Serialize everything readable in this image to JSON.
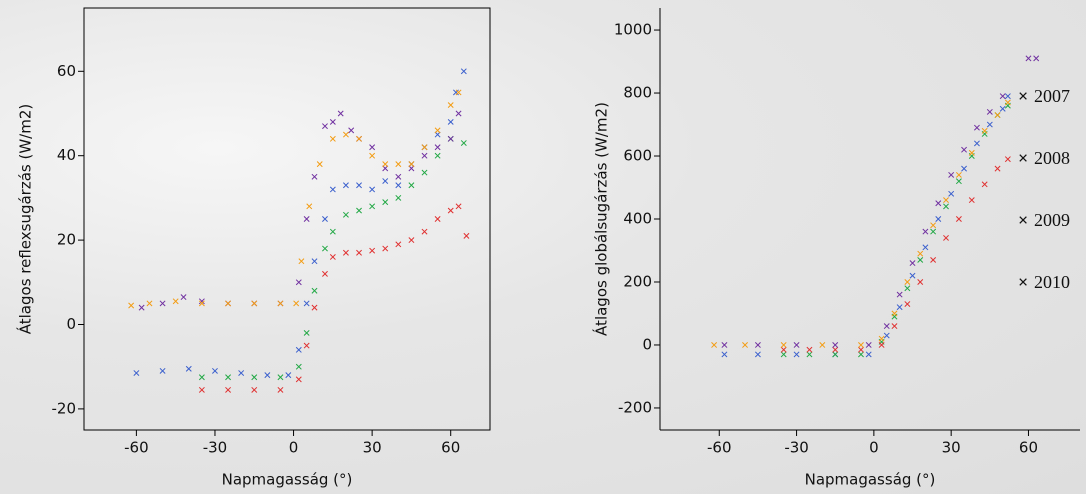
{
  "chart_data": [
    {
      "type": "scatter",
      "x_label": "Napmagasság (°)",
      "y_label": "Átlagos reflexsugárzás (W/m2)",
      "xlim": [
        -80,
        75
      ],
      "ylim": [
        -25,
        75
      ],
      "xticks": [
        -60,
        -30,
        0,
        30,
        60
      ],
      "yticks": [
        -20,
        0,
        20,
        40,
        60
      ],
      "box": true,
      "series": [
        {
          "color": "#3a5fcd",
          "x": [
            -60,
            -50,
            -40,
            -30,
            -20,
            -10,
            -2,
            2,
            5,
            8,
            12,
            15,
            20,
            25,
            30,
            35,
            40,
            45,
            50,
            55,
            60,
            62,
            65
          ],
          "values": [
            -11.5,
            -11,
            -10.5,
            -11,
            -11.5,
            -12,
            -12,
            -6,
            5,
            15,
            25,
            32,
            33,
            33,
            32,
            34,
            33,
            38,
            42,
            45,
            48,
            55,
            60
          ]
        },
        {
          "color": "#22a845",
          "x": [
            -35,
            -25,
            -15,
            -5,
            2,
            5,
            8,
            12,
            15,
            20,
            25,
            30,
            35,
            40,
            45,
            50,
            55,
            60,
            65
          ],
          "values": [
            -12.5,
            -12.5,
            -12.5,
            -12.5,
            -10,
            -2,
            8,
            18,
            22,
            26,
            27,
            28,
            29,
            30,
            33,
            36,
            40,
            44,
            43
          ]
        },
        {
          "color": "#e03030",
          "x": [
            -35,
            -25,
            -15,
            -5,
            2,
            5,
            8,
            12,
            15,
            20,
            25,
            30,
            35,
            40,
            45,
            50,
            55,
            60,
            63,
            66
          ],
          "values": [
            -15.5,
            -15.5,
            -15.5,
            -15.5,
            -13,
            -5,
            4,
            12,
            16,
            17,
            17,
            17.5,
            18,
            19,
            20,
            22,
            25,
            27,
            28,
            21
          ]
        },
        {
          "color": "#7030a0",
          "x": [
            -58,
            -50,
            -42,
            -35,
            -25,
            -15,
            -5,
            2,
            5,
            8,
            12,
            15,
            18,
            22,
            25,
            30,
            35,
            40,
            45,
            50,
            55,
            60,
            63
          ],
          "values": [
            4,
            5,
            6.5,
            5.5,
            5,
            5,
            5,
            10,
            25,
            35,
            47,
            48,
            50,
            46,
            44,
            42,
            37,
            35,
            37,
            40,
            42,
            44,
            50
          ]
        },
        {
          "color": "#f39c12",
          "x": [
            -62,
            -55,
            -45,
            -35,
            -25,
            -15,
            -5,
            1,
            3,
            6,
            10,
            15,
            20,
            25,
            30,
            35,
            40,
            45,
            50,
            55,
            60,
            63
          ],
          "values": [
            4.5,
            5,
            5.5,
            5,
            5,
            5,
            5,
            5,
            15,
            28,
            38,
            44,
            45,
            44,
            40,
            38,
            38,
            38,
            42,
            46,
            52,
            55
          ]
        }
      ]
    },
    {
      "type": "scatter",
      "x_label": "Napmagasság (°)",
      "y_label": "Átlagos globálsugárzás (W/m2)",
      "xlim": [
        -83,
        80
      ],
      "ylim": [
        -270,
        1070
      ],
      "xticks": [
        -60,
        -30,
        0,
        30,
        60
      ],
      "yticks": [
        -200,
        0,
        200,
        400,
        600,
        800,
        1000
      ],
      "box": false,
      "legend": "right",
      "series": [
        {
          "name": "2007",
          "color": "#3a5fcd",
          "x": [
            -58,
            -45,
            -30,
            -15,
            -2,
            5,
            10,
            15,
            20,
            25,
            30,
            35,
            40,
            45,
            50,
            52
          ],
          "values": [
            -30,
            -30,
            -30,
            -30,
            -30,
            30,
            120,
            220,
            310,
            400,
            480,
            560,
            640,
            700,
            750,
            790
          ]
        },
        {
          "name": "2008",
          "color": "#22a845",
          "x": [
            -35,
            -25,
            -15,
            -5,
            3,
            8,
            13,
            18,
            23,
            28,
            33,
            38,
            43,
            48,
            52
          ],
          "values": [
            -30,
            -30,
            -30,
            -30,
            10,
            90,
            180,
            270,
            360,
            440,
            520,
            600,
            670,
            730,
            760
          ]
        },
        {
          "name": "2009",
          "color": "#e03030",
          "x": [
            -35,
            -25,
            -15,
            -5,
            3,
            8,
            13,
            18,
            23,
            28,
            33,
            38,
            43,
            48,
            52
          ],
          "values": [
            -15,
            -15,
            -15,
            -15,
            0,
            60,
            130,
            200,
            270,
            340,
            400,
            460,
            510,
            560,
            590
          ]
        },
        {
          "name": "2010",
          "color": "#7030a0",
          "x": [
            -58,
            -45,
            -30,
            -15,
            -2,
            5,
            10,
            15,
            20,
            25,
            30,
            35,
            40,
            45,
            50,
            60,
            63
          ],
          "values": [
            0,
            0,
            0,
            0,
            0,
            60,
            160,
            260,
            360,
            450,
            540,
            620,
            690,
            740,
            790,
            910,
            910
          ]
        },
        {
          "color": "#f39c12",
          "x": [
            -62,
            -50,
            -35,
            -20,
            -5,
            3,
            8,
            13,
            18,
            23,
            28,
            33,
            38,
            43,
            48,
            52
          ],
          "values": [
            0,
            0,
            0,
            0,
            0,
            20,
            100,
            200,
            290,
            380,
            460,
            540,
            610,
            680,
            730,
            770
          ]
        }
      ]
    }
  ]
}
